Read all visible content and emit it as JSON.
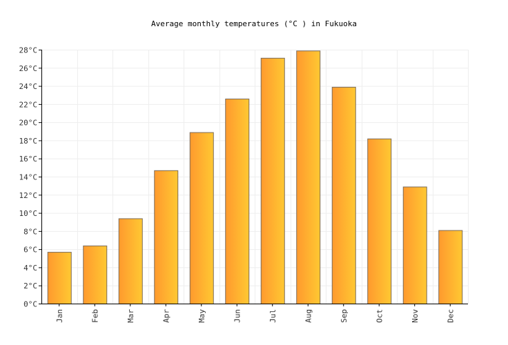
{
  "chart_data": {
    "type": "bar",
    "title": "Average monthly temperatures (°C ) in Fukuoka",
    "categories": [
      "Jan",
      "Feb",
      "Mar",
      "Apr",
      "May",
      "Jun",
      "Jul",
      "Aug",
      "Sep",
      "Oct",
      "Nov",
      "Dec"
    ],
    "series": [
      {
        "values": [
          5.7,
          6.4,
          9.4,
          14.7,
          18.9,
          22.6,
          27.1,
          27.9,
          23.9,
          18.2,
          12.9,
          8.1
        ]
      }
    ],
    "ylim": [
      0,
      28
    ],
    "yticks": [
      0,
      2,
      4,
      6,
      8,
      10,
      12,
      14,
      16,
      18,
      20,
      22,
      24,
      26,
      28
    ],
    "ytick_labels": [
      "0°C",
      "2°C",
      "4°C",
      "6°C",
      "8°C",
      "10°C",
      "12°C",
      "14°C",
      "16°C",
      "18°C",
      "20°C",
      "22°C",
      "24°C",
      "26°C",
      "28°C"
    ],
    "grid": true,
    "colors": {
      "bar_start": "#ff9a2e",
      "bar_end": "#ffc832",
      "bar_edge": "#7a6a58",
      "grid": "#eeeeee",
      "axis": "#000000"
    }
  }
}
